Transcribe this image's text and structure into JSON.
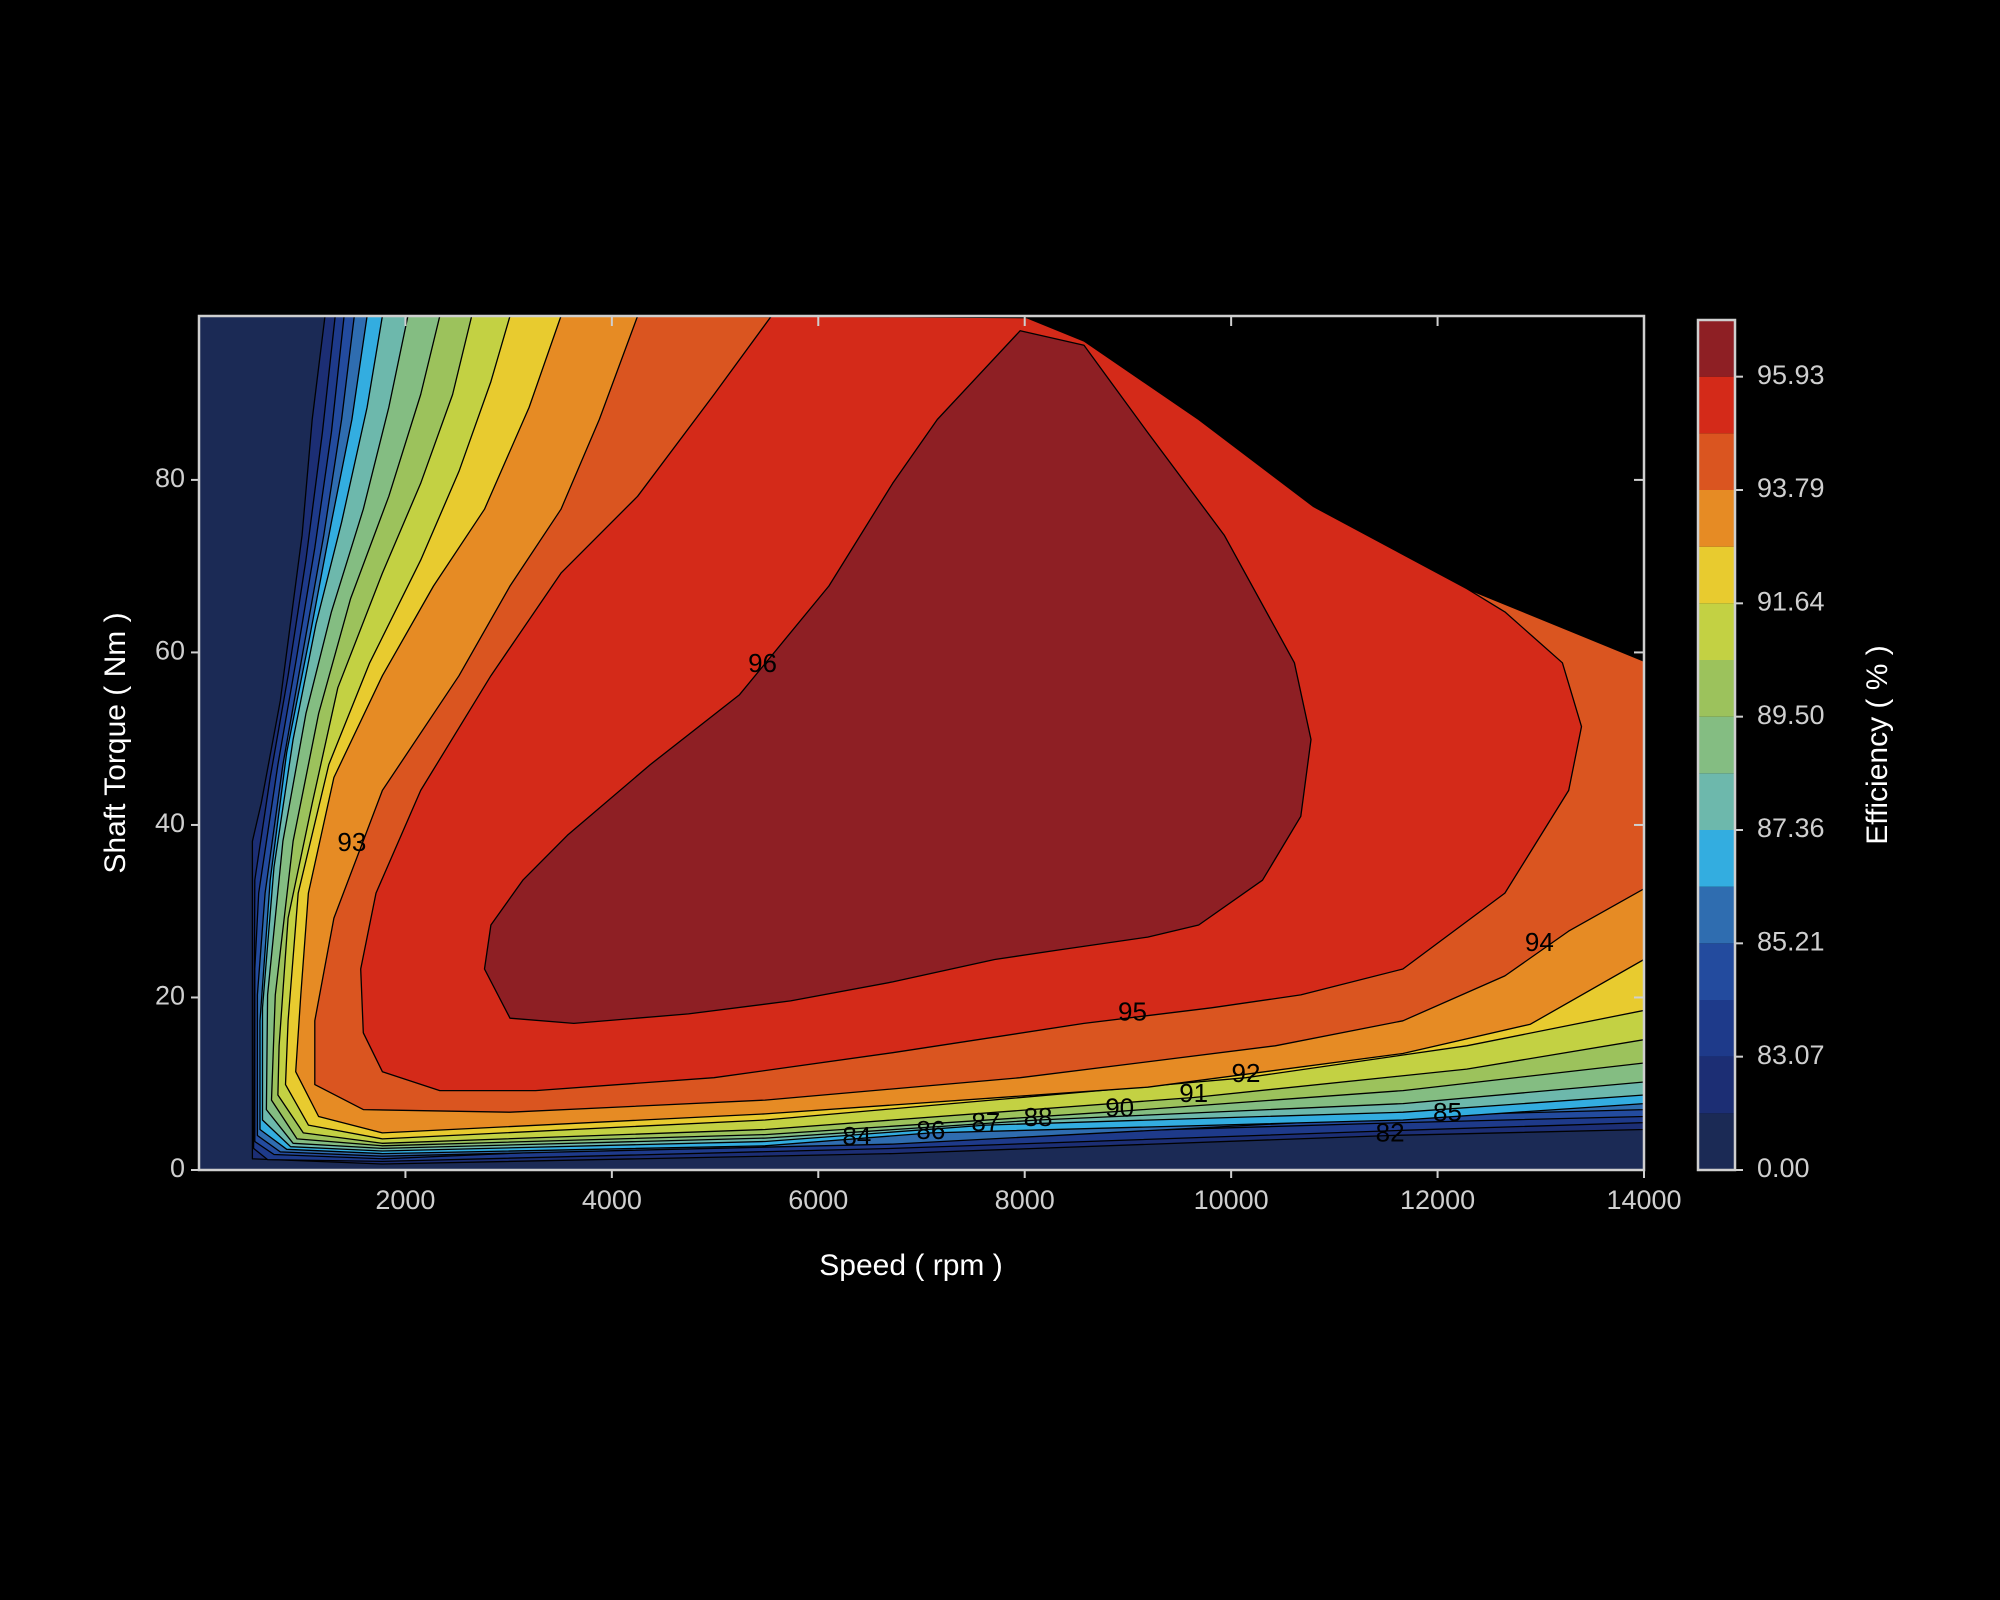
{
  "chart_data": {
    "type": "contourf",
    "xlabel": "Speed ( rpm )",
    "ylabel": "Shaft Torque ( Nm )",
    "xlim": [
      0,
      14000
    ],
    "ylim": [
      0,
      99
    ],
    "xticks": [
      2000,
      4000,
      6000,
      8000,
      10000,
      12000,
      14000
    ],
    "yticks": [
      0,
      20,
      40,
      60,
      80
    ],
    "colorbar": {
      "label": "Efficiency ( % )",
      "levels": [
        0,
        82,
        83.07,
        84.14,
        85.21,
        86.29,
        87.36,
        88.43,
        89.5,
        90.57,
        91.64,
        92.71,
        93.79,
        94.86,
        95.93,
        97
      ],
      "colors": [
        "#1b2a55",
        "#1c2e74",
        "#1e3a8a",
        "#234b9e",
        "#2f6db0",
        "#33ade0",
        "#6db8ac",
        "#84bd82",
        "#9cc25c",
        "#c3d143",
        "#e8cb2f",
        "#e68b24",
        "#da5520",
        "#d42a19",
        "#8e1f24"
      ],
      "ticks": [
        {
          "value": 0,
          "label": "0.00"
        },
        83.07,
        85.21,
        87.36,
        {
          "value": 89.5,
          "label": "89.50"
        },
        91.64,
        93.79,
        95.93
      ]
    },
    "domain": {
      "x": [
        0,
        14000,
        14000,
        12282,
        10799,
        9686,
        8574,
        8018,
        0
      ],
      "y": [
        0,
        0,
        59.0,
        67.4,
        76.9,
        87.0,
        96.1,
        98.8,
        99
      ]
    },
    "contours": [
      {
        "x": [
          1221,
          1097,
          999,
          788,
          603,
          517,
          517,
          1777,
          6721,
          11540,
          14000,
          14000,
          12282,
          10799,
          9686,
          8574,
          8018
        ],
        "y": [
          99,
          87.0,
          73.6,
          54.4,
          42.5,
          38.1,
          1.3,
          0.7,
          1.9,
          4.0,
          4.7,
          59.0,
          67.4,
          76.9,
          87.0,
          96.1,
          98.8
        ]
      },
      {
        "x": [
          1320,
          1196,
          1036,
          863,
          690,
          541,
          529,
          665,
          1777,
          6721,
          11664,
          14000,
          14000,
          12282,
          10799,
          9686,
          8574,
          8018
        ],
        "y": [
          99,
          85.5,
          70.7,
          57.3,
          45.5,
          33.6,
          2.5,
          1.2,
          1.0,
          2.5,
          4.6,
          5.5,
          59.0,
          67.4,
          76.9,
          87.0,
          96.1,
          98.8
        ]
      },
      {
        "x": [
          1406,
          1283,
          1122,
          937,
          764,
          578,
          541,
          541,
          727,
          1777,
          6374,
          11664,
          14000,
          14000,
          12282,
          10799,
          9686,
          8574,
          8018
        ],
        "y": [
          99,
          85.5,
          72.1,
          58.8,
          47.0,
          32.1,
          23.3,
          3.3,
          1.8,
          1.3,
          3.6,
          5.5,
          6.2,
          59.0,
          67.4,
          76.9,
          87.0,
          96.1,
          98.8
        ]
      },
      {
        "x": [
          1505,
          1382,
          1209,
          1011,
          813,
          640,
          566,
          566,
          788,
          1777,
          6721,
          12096,
          14000,
          14000,
          12282,
          10799,
          9686,
          8574,
          8018
        ],
        "y": [
          99,
          87.0,
          73.6,
          60.3,
          47.0,
          32.1,
          20.3,
          4.0,
          2.1,
          1.6,
          3.0,
          6.4,
          7.0,
          59.0,
          67.4,
          76.9,
          87.0,
          96.1,
          98.8
        ]
      },
      {
        "x": [
          1629,
          1481,
          1283,
          1073,
          850,
          690,
          591,
          591,
          850,
          1777,
          5485,
          7091,
          11664,
          14000,
          14000,
          12282,
          10799,
          9686,
          8574,
          8018
        ],
        "y": [
          99,
          87.0,
          75.1,
          61.8,
          48.4,
          33.6,
          17.3,
          4.7,
          2.4,
          1.9,
          2.8,
          4.3,
          5.8,
          7.7,
          59.0,
          67.4,
          76.9,
          87.0,
          96.1,
          98.8
        ]
      },
      {
        "x": [
          1777,
          1629,
          1382,
          1134,
          912,
          727,
          615,
          615,
          887,
          1777,
          5485,
          7623,
          11664,
          14000,
          14000,
          12282,
          10799,
          9686,
          8574,
          8018
        ],
        "y": [
          99,
          88.4,
          75.1,
          63.3,
          49.9,
          35.1,
          18.8,
          5.8,
          2.7,
          2.2,
          3.3,
          5.2,
          6.7,
          8.7,
          59.0,
          67.4,
          76.9,
          87.0,
          96.1,
          98.8
        ]
      },
      {
        "x": [
          2024,
          1839,
          1592,
          1283,
          1036,
          813,
          665,
          653,
          912,
          1777,
          5485,
          8129,
          11664,
          14000,
          14000,
          12282,
          10799,
          9686,
          8574,
          8018
        ],
        "y": [
          99,
          88.4,
          76.6,
          64.7,
          52.9,
          38.1,
          20.3,
          7.0,
          3.1,
          2.5,
          3.7,
          5.8,
          7.7,
          10.2,
          59.0,
          67.4,
          76.9,
          87.0,
          96.1,
          98.8
        ]
      },
      {
        "x": [
          2333,
          2148,
          1839,
          1468,
          1159,
          912,
          739,
          702,
          949,
          1777,
          5485,
          8920,
          11664,
          14000,
          14000,
          12282,
          10799,
          9686,
          8574,
          8018
        ],
        "y": [
          99,
          89.9,
          78.1,
          66.2,
          52.9,
          38.1,
          20.3,
          8.1,
          3.6,
          2.8,
          4.1,
          6.8,
          9.2,
          12.4,
          59.0,
          67.4,
          76.9,
          87.0,
          96.1,
          98.8
        ]
      },
      {
        "x": [
          2642,
          2457,
          2148,
          1777,
          1345,
          1097,
          863,
          776,
          764,
          1011,
          1777,
          5485,
          9637,
          12282,
          14000,
          14000,
          12282,
          10799,
          9686,
          8574,
          8018
        ],
        "y": [
          99,
          89.9,
          79.6,
          69.2,
          55.9,
          42.5,
          29.2,
          14.4,
          8.7,
          4.3,
          3.1,
          4.7,
          8.4,
          11.7,
          15.1,
          59.0,
          67.4,
          76.9,
          87.0,
          96.1,
          98.8
        ]
      },
      {
        "x": [
          3013,
          2828,
          2519,
          2148,
          1654,
          1258,
          961,
          863,
          838,
          1060,
          1777,
          5485,
          10144,
          12282,
          14000,
          14000,
          12282,
          10799,
          9686,
          8574,
          8018
        ],
        "y": [
          99,
          91.4,
          81.0,
          70.7,
          58.8,
          47.0,
          32.1,
          17.3,
          9.9,
          5.2,
          3.6,
          5.8,
          10.7,
          14.4,
          18.5,
          59.0,
          67.4,
          76.9,
          87.0,
          96.1,
          98.8
        ]
      },
      {
        "x": [
          3507,
          3198,
          2766,
          2272,
          1777,
          1307,
          1060,
          986,
          937,
          1159,
          1777,
          5485,
          9192,
          11664,
          12899,
          14000,
          14000,
          12282,
          10799,
          9686,
          8574,
          8018
        ],
        "y": [
          99,
          88.4,
          76.6,
          67.7,
          57.3,
          45.5,
          32.1,
          20.3,
          11.4,
          6.2,
          4.3,
          6.5,
          9.6,
          13.5,
          16.9,
          24.4,
          59.0,
          67.4,
          76.9,
          87.0,
          96.1,
          98.8
        ]
      },
      {
        "x": [
          4249,
          3878,
          3507,
          3013,
          2519,
          1777,
          1307,
          1122,
          1122,
          1592,
          3013,
          5485,
          7956,
          10428,
          11664,
          12652,
          13270,
          14000,
          14000,
          12282,
          10799,
          9686,
          8574,
          8018
        ],
        "y": [
          99,
          87.0,
          76.6,
          67.7,
          57.3,
          44.0,
          29.2,
          17.3,
          9.9,
          7.0,
          6.7,
          8.1,
          10.7,
          14.4,
          17.3,
          22.5,
          27.7,
          32.6,
          59.0,
          67.4,
          76.9,
          87.0,
          96.1,
          98.8
        ]
      },
      {
        "x": [
          5546,
          4990,
          4249,
          3507,
          2828,
          2148,
          1715,
          1567,
          1592,
          1777,
          2333,
          3260,
          4990,
          6721,
          8574,
          9810,
          10675,
          11664,
          12652,
          13270,
          13394,
          13209,
          12652,
          12282,
          10799,
          9686,
          8574,
          8018
        ],
        "y": [
          99,
          89.9,
          78.1,
          69.2,
          57.3,
          44.0,
          32.1,
          23.3,
          15.9,
          11.4,
          9.2,
          9.2,
          10.7,
          13.6,
          17.0,
          18.8,
          20.3,
          23.3,
          32.1,
          44.0,
          51.4,
          58.8,
          64.7,
          67.4,
          76.9,
          87.0,
          96.1,
          98.8
        ]
      },
      {
        "x": [
          2766,
          2828,
          3137,
          3569,
          4372,
          5237,
          6103,
          6721,
          7153,
          7956,
          8574,
          9192,
          9933,
          10613,
          10774,
          10675,
          10304,
          9686,
          9192,
          8327,
          7709,
          6721,
          5732,
          4743,
          3631,
          3013
        ],
        "y": [
          23.3,
          28.4,
          33.6,
          38.8,
          47.0,
          55.1,
          67.7,
          79.6,
          87.0,
          97.3,
          95.6,
          85.5,
          73.6,
          58.8,
          49.9,
          41.0,
          33.6,
          28.4,
          27.0,
          25.5,
          24.4,
          21.8,
          19.6,
          18.1,
          17.0,
          17.6
        ]
      }
    ],
    "contour_labels": [
      {
        "label": "96",
        "x": 5460,
        "y": 58.5
      },
      {
        "label": "95",
        "x": 9044,
        "y": 18.1
      },
      {
        "label": "94",
        "x": 12986,
        "y": 26.2
      },
      {
        "label": "93",
        "x": 1481,
        "y": 37.8
      },
      {
        "label": "92",
        "x": 10144,
        "y": 11.0
      },
      {
        "label": "91",
        "x": 9637,
        "y": 8.7
      },
      {
        "label": "90",
        "x": 8920,
        "y": 7.0
      },
      {
        "label": "88",
        "x": 8129,
        "y": 5.9
      },
      {
        "label": "87",
        "x": 7623,
        "y": 5.3
      },
      {
        "label": "86",
        "x": 7091,
        "y": 4.4
      },
      {
        "label": "85",
        "x": 12096,
        "y": 6.5
      },
      {
        "label": "84",
        "x": 6374,
        "y": 3.7
      },
      {
        "label": "82",
        "x": 11540,
        "y": 4.1
      }
    ]
  }
}
